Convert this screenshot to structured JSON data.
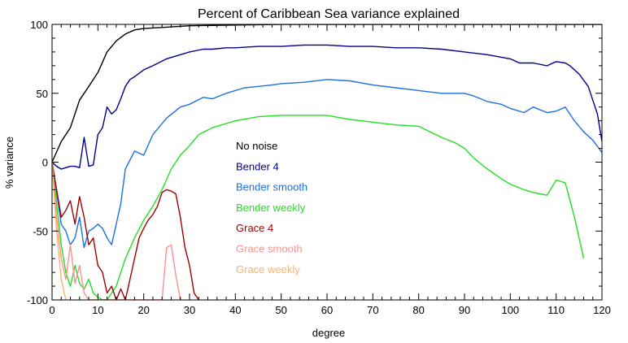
{
  "chart_data": {
    "type": "line",
    "title": "Percent of Caribbean Sea variance explained",
    "xlabel": "degree",
    "ylabel": "% variance",
    "xlim": [
      0,
      120
    ],
    "ylim": [
      -100,
      100
    ],
    "x_ticks": [
      "0",
      "10",
      "20",
      "30",
      "40",
      "50",
      "60",
      "70",
      "80",
      "90",
      "100",
      "110",
      "120"
    ],
    "y_ticks": [
      "-100",
      "-50",
      "0",
      "50",
      "100"
    ],
    "legend_placement": "center",
    "series": [
      {
        "name": "No noise",
        "color": "#000000",
        "x": [
          0,
          2,
          4,
          6,
          8,
          10,
          12,
          14,
          16,
          18,
          20,
          25,
          30,
          40,
          50,
          60,
          70,
          80,
          90,
          100,
          110,
          115,
          118,
          120
        ],
        "y": [
          0,
          15,
          25,
          45,
          55,
          65,
          80,
          88,
          93,
          96,
          97,
          98,
          99,
          99.5,
          100,
          100,
          100,
          100,
          100,
          100,
          100,
          100,
          100,
          100
        ]
      },
      {
        "name": "Bender 4",
        "color": "#00008b",
        "x": [
          0,
          1,
          2,
          3,
          4,
          5,
          6,
          7,
          8,
          9,
          10,
          11,
          12,
          13,
          14,
          15,
          16,
          17,
          18,
          20,
          22,
          25,
          28,
          30,
          33,
          35,
          38,
          40,
          45,
          50,
          55,
          60,
          65,
          70,
          75,
          80,
          85,
          90,
          95,
          100,
          102,
          105,
          108,
          110,
          112,
          113,
          115,
          117,
          119,
          120
        ],
        "y": [
          0,
          -3,
          -5,
          -4,
          -3,
          -3,
          -4,
          18,
          -3,
          -2,
          20,
          25,
          40,
          35,
          38,
          46,
          55,
          60,
          62,
          67,
          70,
          75,
          78,
          80,
          82,
          82,
          83,
          83,
          84,
          84,
          85,
          85,
          84,
          84,
          83,
          83,
          82,
          80,
          78,
          75,
          72,
          72,
          70,
          73,
          72,
          70,
          64,
          55,
          35,
          15
        ]
      },
      {
        "name": "Bender smooth",
        "color": "#1e6fe0",
        "x": [
          0,
          2,
          3,
          4,
          5,
          6,
          7,
          8,
          9,
          10,
          11,
          12,
          13,
          14,
          15,
          16,
          18,
          20,
          22,
          25,
          28,
          30,
          33,
          35,
          38,
          40,
          42,
          45,
          48,
          50,
          55,
          60,
          65,
          70,
          75,
          80,
          85,
          90,
          92,
          95,
          98,
          100,
          103,
          105,
          108,
          110,
          112,
          114,
          116,
          118,
          120
        ],
        "y": [
          0,
          -45,
          -50,
          -60,
          -55,
          -40,
          -62,
          -50,
          -48,
          -45,
          -48,
          -55,
          -60,
          -45,
          -30,
          -5,
          8,
          5,
          20,
          32,
          40,
          42,
          47,
          46,
          50,
          52,
          54,
          55,
          56,
          57,
          58,
          60,
          59,
          56,
          54,
          52,
          50,
          50,
          48,
          44,
          42,
          39,
          36,
          40,
          36,
          37,
          40,
          30,
          22,
          16,
          7
        ]
      },
      {
        "name": "Bender weekly",
        "color": "#22e022",
        "x": [
          0,
          1,
          2,
          3,
          4,
          5,
          6,
          7,
          8,
          9,
          10,
          11,
          12,
          14,
          16,
          18,
          20,
          22,
          24,
          26,
          28,
          30,
          32,
          35,
          38,
          40,
          45,
          50,
          55,
          60,
          65,
          70,
          75,
          80,
          85,
          88,
          90,
          92,
          95,
          98,
          100,
          103,
          105,
          108,
          110,
          112,
          114,
          116
        ],
        "y": [
          0,
          -30,
          -60,
          -80,
          -90,
          -75,
          -88,
          -92,
          -85,
          -95,
          -98,
          -100,
          -100,
          -90,
          -70,
          -55,
          -42,
          -32,
          -20,
          -5,
          5,
          12,
          20,
          25,
          28,
          30,
          33,
          34,
          34,
          34,
          31,
          29,
          27,
          26,
          18,
          14,
          10,
          3,
          -5,
          -12,
          -16,
          -20,
          -22,
          -24,
          -13,
          -15,
          -40,
          -70
        ]
      },
      {
        "name": "Grace 4",
        "color": "#a00000",
        "x": [
          0,
          1,
          2,
          3,
          4,
          5,
          6,
          7,
          8,
          9,
          10,
          11,
          12,
          13,
          14,
          15,
          16,
          17,
          18,
          19,
          20,
          21,
          22,
          23,
          24,
          25,
          26,
          27,
          28,
          29,
          30,
          31,
          32
        ],
        "y": [
          0,
          -20,
          -40,
          -35,
          -28,
          -45,
          -25,
          -40,
          -60,
          -55,
          -75,
          -80,
          -95,
          -90,
          -100,
          -92,
          -100,
          -85,
          -70,
          -55,
          -48,
          -42,
          -38,
          -32,
          -22,
          -20,
          -21,
          -23,
          -40,
          -62,
          -75,
          -95,
          -100
        ]
      },
      {
        "name": "Grace smooth",
        "color": "#ff9090",
        "x": [
          0,
          1,
          2,
          3,
          4,
          5,
          6,
          7,
          8,
          24,
          25,
          26,
          27,
          28
        ],
        "y": [
          0,
          -40,
          -70,
          -85,
          -60,
          -88,
          -75,
          -95,
          -100,
          -100,
          -62,
          -60,
          -82,
          -100
        ]
      },
      {
        "name": "Grace weekly",
        "color": "#ffb070",
        "x": [
          0,
          1,
          2,
          3
        ],
        "y": [
          0,
          -50,
          -85,
          -100
        ]
      }
    ]
  }
}
